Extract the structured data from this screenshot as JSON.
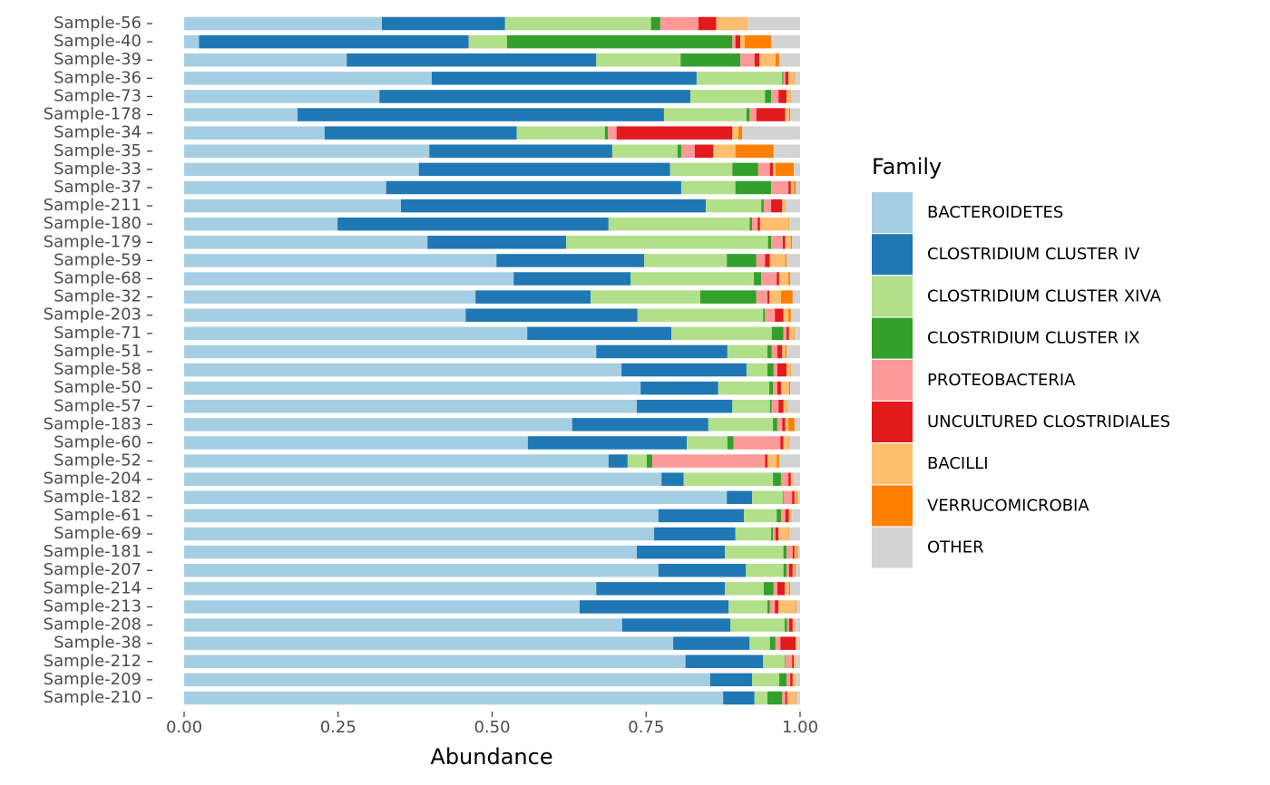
{
  "chart_data": {
    "type": "stacked-barh",
    "xlabel": "Abundance",
    "legend_title": "Family",
    "xlim": [
      0,
      1
    ],
    "xticks": [
      {
        "value": 0,
        "label": "0.00"
      },
      {
        "value": 0.25,
        "label": "0.25"
      },
      {
        "value": 0.5,
        "label": "0.50"
      },
      {
        "value": 0.75,
        "label": "0.75"
      },
      {
        "value": 1,
        "label": "1.00"
      }
    ],
    "categories": [
      "Sample-56",
      "Sample-40",
      "Sample-39",
      "Sample-36",
      "Sample-73",
      "Sample-178",
      "Sample-34",
      "Sample-35",
      "Sample-33",
      "Sample-37",
      "Sample-211",
      "Sample-180",
      "Sample-179",
      "Sample-59",
      "Sample-68",
      "Sample-32",
      "Sample-203",
      "Sample-71",
      "Sample-51",
      "Sample-58",
      "Sample-50",
      "Sample-57",
      "Sample-183",
      "Sample-60",
      "Sample-52",
      "Sample-204",
      "Sample-182",
      "Sample-61",
      "Sample-69",
      "Sample-181",
      "Sample-207",
      "Sample-214",
      "Sample-213",
      "Sample-208",
      "Sample-38",
      "Sample-212",
      "Sample-209",
      "Sample-210"
    ],
    "series": [
      {
        "name": "BACTEROIDETES",
        "color": "#A6CEE3",
        "values": [
          0.321,
          0.024,
          0.264,
          0.402,
          0.317,
          0.184,
          0.228,
          0.398,
          0.381,
          0.328,
          0.352,
          0.249,
          0.395,
          0.507,
          0.535,
          0.473,
          0.457,
          0.557,
          0.669,
          0.71,
          0.741,
          0.735,
          0.63,
          0.558,
          0.689,
          0.775,
          0.881,
          0.77,
          0.763,
          0.735,
          0.77,
          0.669,
          0.642,
          0.711,
          0.794,
          0.814,
          0.854,
          0.875
        ]
      },
      {
        "name": "CLOSTRIDIUM CLUSTER IV",
        "color": "#1F78B4",
        "values": [
          0.2,
          0.438,
          0.405,
          0.43,
          0.505,
          0.595,
          0.312,
          0.297,
          0.408,
          0.479,
          0.495,
          0.44,
          0.225,
          0.24,
          0.19,
          0.187,
          0.279,
          0.234,
          0.213,
          0.203,
          0.126,
          0.155,
          0.221,
          0.258,
          0.031,
          0.036,
          0.041,
          0.139,
          0.132,
          0.143,
          0.142,
          0.209,
          0.242,
          0.176,
          0.124,
          0.126,
          0.068,
          0.051
        ]
      },
      {
        "name": "CLOSTRIDIUM CLUSTER XIVA",
        "color": "#B2DF8A",
        "values": [
          0.237,
          0.062,
          0.137,
          0.139,
          0.121,
          0.134,
          0.143,
          0.106,
          0.101,
          0.088,
          0.09,
          0.229,
          0.328,
          0.134,
          0.2,
          0.178,
          0.204,
          0.163,
          0.065,
          0.034,
          0.083,
          0.061,
          0.105,
          0.066,
          0.031,
          0.145,
          0.05,
          0.053,
          0.058,
          0.095,
          0.061,
          0.063,
          0.063,
          0.088,
          0.033,
          0.035,
          0.044,
          0.021
        ]
      },
      {
        "name": "CLOSTRIDIUM CLUSTER IX",
        "color": "#33A02C",
        "values": [
          0.015,
          0.366,
          0.097,
          0.002,
          0.01,
          0.005,
          0.005,
          0.006,
          0.042,
          0.058,
          0.004,
          0.004,
          0.005,
          0.048,
          0.012,
          0.091,
          0.003,
          0.019,
          0.007,
          0.01,
          0.006,
          0.003,
          0.007,
          0.01,
          0.009,
          0.013,
          0.001,
          0.007,
          0.003,
          0.005,
          0.005,
          0.016,
          0.004,
          0.004,
          0.009,
          0.001,
          0.012,
          0.024
        ]
      },
      {
        "name": "PROTEOBACTERIA",
        "color": "#FB9A99",
        "values": [
          0.062,
          0.005,
          0.023,
          0.003,
          0.012,
          0.011,
          0.014,
          0.022,
          0.019,
          0.028,
          0.012,
          0.009,
          0.019,
          0.014,
          0.025,
          0.018,
          0.016,
          0.005,
          0.009,
          0.006,
          0.007,
          0.011,
          0.008,
          0.076,
          0.183,
          0.012,
          0.014,
          0.007,
          0.004,
          0.01,
          0.004,
          0.006,
          0.008,
          0.003,
          0.008,
          0.011,
          0.006,
          0.005
        ]
      },
      {
        "name": "UNCULTURED CLOSTRIDIALES",
        "color": "#E31A1C",
        "values": [
          0.029,
          0.008,
          0.008,
          0.005,
          0.013,
          0.047,
          0.188,
          0.03,
          0.005,
          0.004,
          0.018,
          0.004,
          0.004,
          0.008,
          0.004,
          0.003,
          0.014,
          0.004,
          0.008,
          0.015,
          0.006,
          0.008,
          0.005,
          0.005,
          0.004,
          0.004,
          0.004,
          0.006,
          0.005,
          0.003,
          0.006,
          0.012,
          0.006,
          0.006,
          0.025,
          0.003,
          0.004,
          0.003
        ]
      },
      {
        "name": "BACILLI",
        "color": "#FDBF6F",
        "values": [
          0.051,
          0.007,
          0.026,
          0.009,
          0.006,
          0.006,
          0.01,
          0.036,
          0.004,
          0.005,
          0.004,
          0.046,
          0.009,
          0.025,
          0.015,
          0.019,
          0.008,
          0.008,
          0.005,
          0.006,
          0.013,
          0.005,
          0.005,
          0.008,
          0.015,
          0.005,
          0.003,
          0.005,
          0.016,
          0.003,
          0.003,
          0.007,
          0.028,
          0.005,
          0.003,
          0.004,
          0.006,
          0.014
        ]
      },
      {
        "name": "VERRUCOMICROBIA",
        "color": "#FF7F00",
        "values": [
          0,
          0.043,
          0.006,
          0.001,
          0.001,
          0.002,
          0.006,
          0.062,
          0.03,
          0.003,
          0.001,
          0.001,
          0.002,
          0.002,
          0.003,
          0.019,
          0.004,
          0.001,
          0.002,
          0.001,
          0.002,
          0.001,
          0.01,
          0.001,
          0.004,
          0,
          0.002,
          0,
          0.001,
          0.002,
          0.002,
          0.002,
          0.001,
          0,
          0,
          0,
          0,
          0.001
        ]
      },
      {
        "name": "OTHER",
        "color": "#D3D3D3",
        "values": [
          0.085,
          0.047,
          0.034,
          0.009,
          0.015,
          0.016,
          0.094,
          0.043,
          0.01,
          0.007,
          0.024,
          0.018,
          0.013,
          0.022,
          0.016,
          0.012,
          0.015,
          0.009,
          0.022,
          0.015,
          0.016,
          0.021,
          0.009,
          0.018,
          0.034,
          0.01,
          0.004,
          0.013,
          0.018,
          0.004,
          0.007,
          0.016,
          0.006,
          0.007,
          0.004,
          0.006,
          0.006,
          0.006
        ]
      }
    ]
  }
}
